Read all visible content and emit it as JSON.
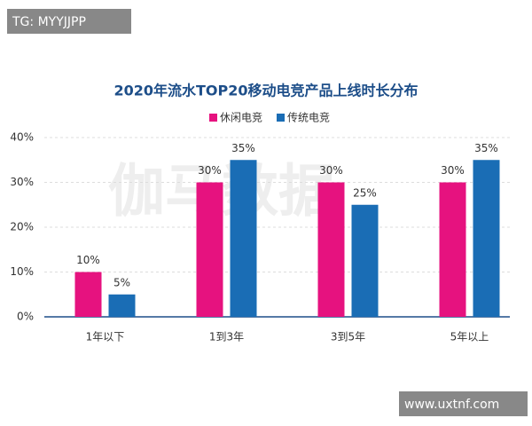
{
  "chart_data": {
    "type": "bar",
    "title": "2020年流水TOP20移动电竞产品上线时长分布",
    "categories": [
      "1年以下",
      "1到3年",
      "3到5年",
      "5年以上"
    ],
    "series": [
      {
        "name": "休闲电竞",
        "color": "#e6127f",
        "values": [
          10,
          30,
          30,
          30
        ],
        "value_labels": [
          "10%",
          "30%",
          "30%",
          "30%"
        ]
      },
      {
        "name": "传统电竞",
        "color": "#1a6db5",
        "values": [
          5,
          35,
          25,
          35
        ],
        "value_labels": [
          "5%",
          "35%",
          "25%",
          "35%"
        ]
      }
    ],
    "ylim": [
      0,
      40
    ],
    "yticks": [
      {
        "value": 0,
        "label": "0%"
      },
      {
        "value": 10,
        "label": "10%"
      },
      {
        "value": 20,
        "label": "20%"
      },
      {
        "value": 30,
        "label": "30%"
      },
      {
        "value": 40,
        "label": "40%"
      }
    ],
    "grid": true,
    "watermarks": [
      "伽马数据",
      "TG: MYYJJPP",
      "www.uxtnf.com"
    ]
  }
}
